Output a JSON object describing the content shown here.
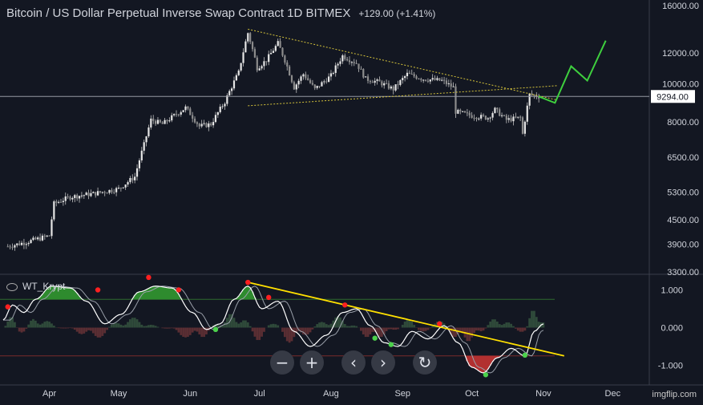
{
  "header": {
    "title": "Bitcoin / US Dollar Perpetual Inverse Swap Contract   1D   BITMEX",
    "change": "+129.00 (+1.41%)"
  },
  "indicator": {
    "name": "WT_Krypt"
  },
  "controls": {
    "zoom_out": "−",
    "zoom_in": "+",
    "back": "‹",
    "forward": "›",
    "reset": "↻"
  },
  "watermark": "imgflip.com",
  "colors": {
    "background": "#131722",
    "candle": "#e6e6e6",
    "trend": "#d4c23a",
    "projection": "#3ecf3e",
    "wt_fast": "#ffffff",
    "wt_slow": "#9aa0aa",
    "bull_fill": "#2e8b2e",
    "bear_fill": "#b23030",
    "yellow_line": "#ffe000",
    "red_dot": "#ff2020",
    "green_dot": "#4cd24c"
  },
  "chart_data": [
    {
      "type": "candlestick",
      "title": "",
      "x_ticks": [
        "Apr",
        "May",
        "Jun",
        "Jul",
        "Aug",
        "Sep",
        "Oct",
        "Nov",
        "Dec"
      ],
      "y_ticks": [
        "16000.00",
        "12000.00",
        "10000.00",
        "8000.00",
        "6500.00",
        "5300.00",
        "4500.00",
        "3900.00",
        "3300.00"
      ],
      "y_scale": "log",
      "ylim": [
        3300,
        16000
      ],
      "last_price": "9294.00",
      "close_path": [
        {
          "date": "2019-03-14",
          "price": 3850
        },
        {
          "date": "2019-03-22",
          "price": 3950
        },
        {
          "date": "2019-04-01",
          "price": 4100
        },
        {
          "date": "2019-04-03",
          "price": 4950
        },
        {
          "date": "2019-04-10",
          "price": 5150
        },
        {
          "date": "2019-04-20",
          "price": 5250
        },
        {
          "date": "2019-05-01",
          "price": 5400
        },
        {
          "date": "2019-05-08",
          "price": 5800
        },
        {
          "date": "2019-05-12",
          "price": 7000
        },
        {
          "date": "2019-05-15",
          "price": 8100
        },
        {
          "date": "2019-05-20",
          "price": 7900
        },
        {
          "date": "2019-05-25",
          "price": 8300
        },
        {
          "date": "2019-05-30",
          "price": 8700
        },
        {
          "date": "2019-06-05",
          "price": 7800
        },
        {
          "date": "2019-06-10",
          "price": 7900
        },
        {
          "date": "2019-06-16",
          "price": 9000
        },
        {
          "date": "2019-06-22",
          "price": 10700
        },
        {
          "date": "2019-06-26",
          "price": 13500
        },
        {
          "date": "2019-06-30",
          "price": 11000
        },
        {
          "date": "2019-07-04",
          "price": 11500
        },
        {
          "date": "2019-07-09",
          "price": 12700
        },
        {
          "date": "2019-07-12",
          "price": 11500
        },
        {
          "date": "2019-07-16",
          "price": 9800
        },
        {
          "date": "2019-07-20",
          "price": 10600
        },
        {
          "date": "2019-07-25",
          "price": 9700
        },
        {
          "date": "2019-08-01",
          "price": 10500
        },
        {
          "date": "2019-08-06",
          "price": 11800
        },
        {
          "date": "2019-08-12",
          "price": 11300
        },
        {
          "date": "2019-08-16",
          "price": 10300
        },
        {
          "date": "2019-08-22",
          "price": 10100
        },
        {
          "date": "2019-08-28",
          "price": 9700
        },
        {
          "date": "2019-09-03",
          "price": 10600
        },
        {
          "date": "2019-09-10",
          "price": 10300
        },
        {
          "date": "2019-09-18",
          "price": 10200
        },
        {
          "date": "2019-09-23",
          "price": 9800
        },
        {
          "date": "2019-09-24",
          "price": 8500
        },
        {
          "date": "2019-10-01",
          "price": 8300
        },
        {
          "date": "2019-10-08",
          "price": 8200
        },
        {
          "date": "2019-10-11",
          "price": 8600
        },
        {
          "date": "2019-10-16",
          "price": 8100
        },
        {
          "date": "2019-10-22",
          "price": 8200
        },
        {
          "date": "2019-10-23",
          "price": 7450
        },
        {
          "date": "2019-10-26",
          "price": 9400
        },
        {
          "date": "2019-10-30",
          "price": 9294
        }
      ],
      "triangle_upper": [
        {
          "date": "2019-06-26",
          "price": 13800
        },
        {
          "date": "2019-11-07",
          "price": 9100
        }
      ],
      "triangle_lower": [
        {
          "date": "2019-06-26",
          "price": 8800
        },
        {
          "date": "2019-11-07",
          "price": 9900
        }
      ],
      "projection": [
        {
          "date": "2019-10-30",
          "price": 9294
        },
        {
          "date": "2019-11-06",
          "price": 8950
        },
        {
          "date": "2019-11-13",
          "price": 11100
        },
        {
          "date": "2019-11-20",
          "price": 10200
        },
        {
          "date": "2019-11-28",
          "price": 12900
        }
      ]
    },
    {
      "type": "line",
      "title": "WT_Krypt",
      "y_ticks": [
        "1.000",
        "0.000",
        "-1.000"
      ],
      "ylim": [
        -1.35,
        1.35
      ],
      "wave_fast": [
        {
          "date": "2019-03-12",
          "value": 0.2
        },
        {
          "date": "2019-03-16",
          "value": 0.6
        },
        {
          "date": "2019-03-21",
          "value": 0.4
        },
        {
          "date": "2019-03-26",
          "value": 0.75
        },
        {
          "date": "2019-04-02",
          "value": 1.1
        },
        {
          "date": "2019-04-10",
          "value": 1.05
        },
        {
          "date": "2019-04-17",
          "value": 0.7
        },
        {
          "date": "2019-04-25",
          "value": 0.1
        },
        {
          "date": "2019-05-02",
          "value": 0.35
        },
        {
          "date": "2019-05-10",
          "value": 0.95
        },
        {
          "date": "2019-05-17",
          "value": 1.1
        },
        {
          "date": "2019-05-24",
          "value": 1.05
        },
        {
          "date": "2019-06-02",
          "value": 0.4
        },
        {
          "date": "2019-06-08",
          "value": -0.05
        },
        {
          "date": "2019-06-14",
          "value": 0.1
        },
        {
          "date": "2019-06-20",
          "value": 0.75
        },
        {
          "date": "2019-06-26",
          "value": 1.1
        },
        {
          "date": "2019-07-02",
          "value": 0.5
        },
        {
          "date": "2019-07-09",
          "value": 0.7
        },
        {
          "date": "2019-07-16",
          "value": -0.1
        },
        {
          "date": "2019-07-23",
          "value": -0.5
        },
        {
          "date": "2019-07-30",
          "value": -0.2
        },
        {
          "date": "2019-08-06",
          "value": 0.4
        },
        {
          "date": "2019-08-12",
          "value": 0.5
        },
        {
          "date": "2019-08-18",
          "value": 0.05
        },
        {
          "date": "2019-08-24",
          "value": -0.4
        },
        {
          "date": "2019-08-30",
          "value": -0.5
        },
        {
          "date": "2019-09-05",
          "value": -0.1
        },
        {
          "date": "2019-09-12",
          "value": -0.3
        },
        {
          "date": "2019-09-19",
          "value": 0.05
        },
        {
          "date": "2019-09-25",
          "value": -0.4
        },
        {
          "date": "2019-10-01",
          "value": -1.05
        },
        {
          "date": "2019-10-06",
          "value": -1.2
        },
        {
          "date": "2019-10-12",
          "value": -0.8
        },
        {
          "date": "2019-10-18",
          "value": -0.55
        },
        {
          "date": "2019-10-24",
          "value": -0.75
        },
        {
          "date": "2019-10-28",
          "value": -0.1
        },
        {
          "date": "2019-11-01",
          "value": 0.1
        }
      ],
      "trend_line": [
        {
          "date": "2019-06-26",
          "value": 1.2
        },
        {
          "date": "2019-11-10",
          "value": -0.75
        }
      ],
      "red_dots": [
        {
          "date": "2019-03-14",
          "value": 0.55
        },
        {
          "date": "2019-04-22",
          "value": 1.0
        },
        {
          "date": "2019-05-14",
          "value": 1.33
        },
        {
          "date": "2019-05-27",
          "value": 1.0
        },
        {
          "date": "2019-06-26",
          "value": 1.2
        },
        {
          "date": "2019-07-05",
          "value": 0.8
        },
        {
          "date": "2019-08-07",
          "value": 0.6
        },
        {
          "date": "2019-09-17",
          "value": 0.1
        }
      ],
      "green_dots": [
        {
          "date": "2019-06-12",
          "value": -0.05
        },
        {
          "date": "2019-08-20",
          "value": -0.28
        },
        {
          "date": "2019-08-27",
          "value": -0.45
        },
        {
          "date": "2019-10-07",
          "value": -1.25
        },
        {
          "date": "2019-10-24",
          "value": -0.73
        }
      ]
    }
  ]
}
